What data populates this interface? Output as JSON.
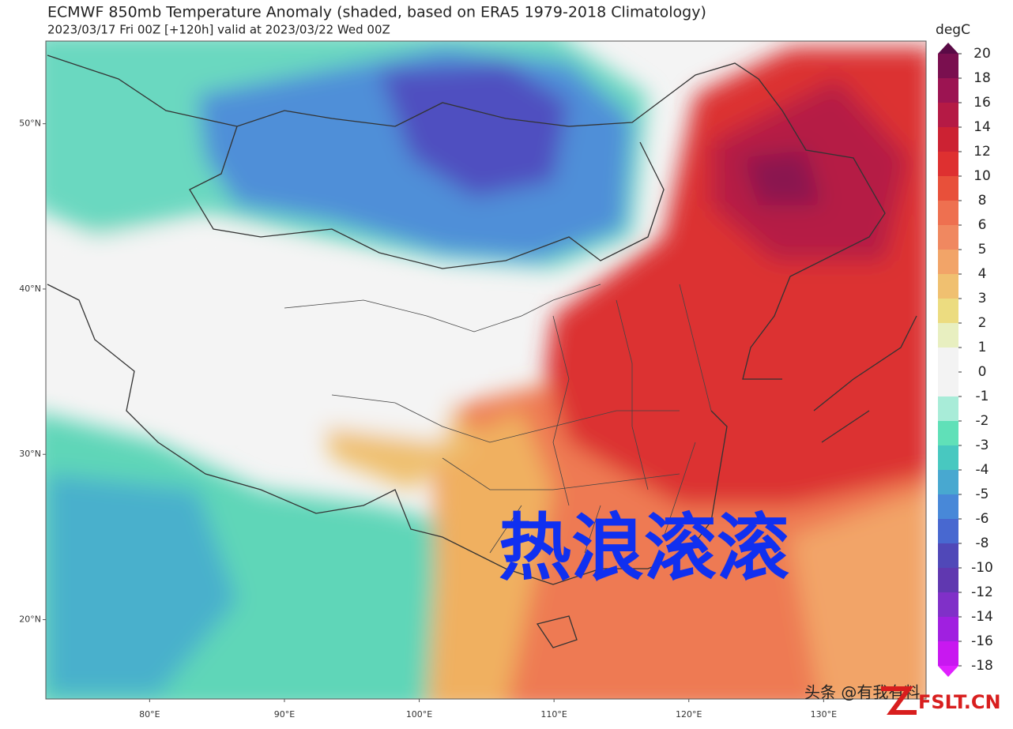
{
  "title": "ECMWF 850mb Temperature Anomaly (shaded, based on ERA5 1979-2018 Climatology)",
  "subtitle": "2023/03/17 Fri 00Z [+120h] valid at 2023/03/22 Wed 00Z",
  "map": {
    "lat_range": [
      15.2,
      55
    ],
    "lon_range": [
      72.3,
      137.6
    ],
    "lat_ticks": [
      {
        "value": 50,
        "label": "50°N"
      },
      {
        "value": 40,
        "label": "40°N"
      },
      {
        "value": 30,
        "label": "30°N"
      },
      {
        "value": 20,
        "label": "20°N"
      }
    ],
    "lon_ticks": [
      {
        "value": 80,
        "label": "80°E"
      },
      {
        "value": 90,
        "label": "90°E"
      },
      {
        "value": 100,
        "label": "100°E"
      },
      {
        "value": 110,
        "label": "110°E"
      },
      {
        "value": 120,
        "label": "120°E"
      },
      {
        "value": 130,
        "label": "130°E"
      }
    ]
  },
  "colorbar": {
    "unit": "degC",
    "ticks": [
      20,
      18,
      16,
      14,
      12,
      10,
      8,
      6,
      5,
      4,
      3,
      2,
      1,
      0,
      -1,
      -2,
      -3,
      -4,
      -5,
      -6,
      -8,
      -10,
      -12,
      -14,
      -16,
      -18
    ],
    "colors": [
      "#5a0a46",
      "#7a0f4f",
      "#9c1452",
      "#b51a45",
      "#cc2233",
      "#de3030",
      "#e8503a",
      "#ee7050",
      "#f08860",
      "#f2a468",
      "#f0c070",
      "#ecdc80",
      "#e8efc0",
      "#f3f3f3",
      "#f3f3f3",
      "#a8ecd8",
      "#60e0b8",
      "#48c8c0",
      "#48a8d0",
      "#4888d8",
      "#4868d0",
      "#5048b8",
      "#6038b0",
      "#8030c8",
      "#a020e0",
      "#c818f0",
      "#e020ff"
    ]
  },
  "overlay": "热浪滚滚",
  "watermark": "头条 @有我有料",
  "site": "FSLT.CN"
}
